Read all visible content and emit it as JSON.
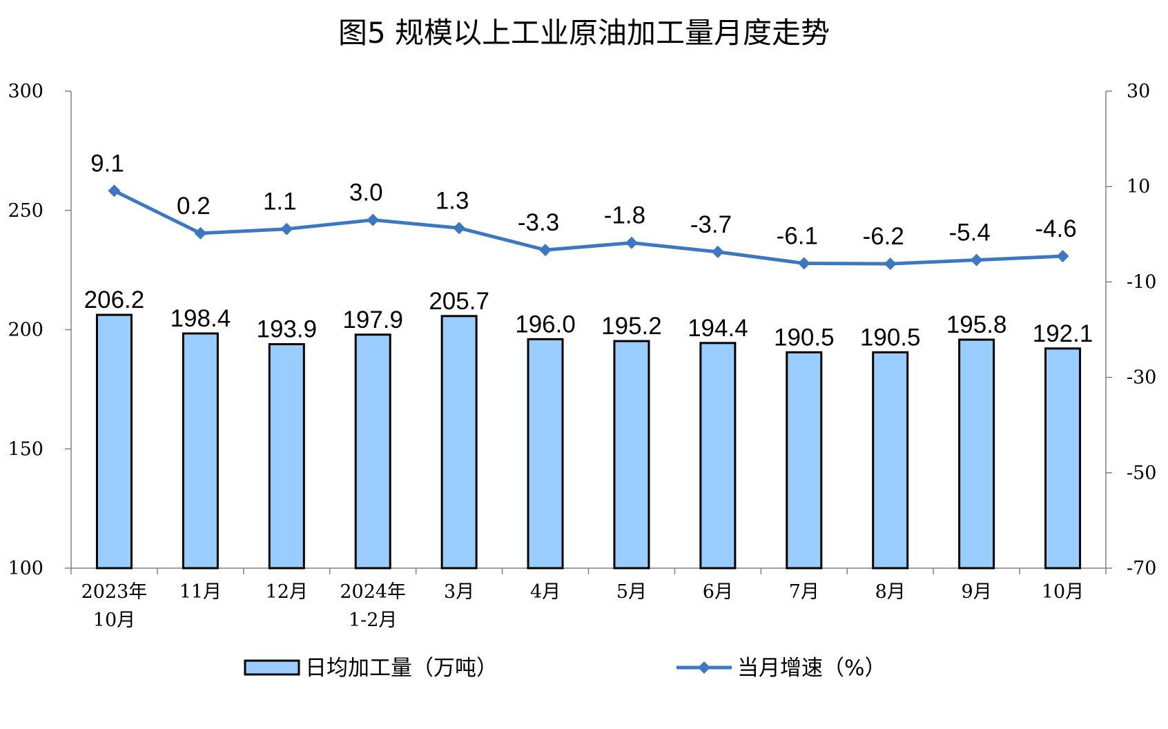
{
  "chart_data": {
    "title": "图5  规模以上工业原油加工量月度走势",
    "type": "bar",
    "categories": [
      [
        "2023年",
        "10月"
      ],
      [
        "11月"
      ],
      [
        "12月"
      ],
      [
        "2024年",
        "1-2月"
      ],
      [
        "3月"
      ],
      [
        "4月"
      ],
      [
        "5月"
      ],
      [
        "6月"
      ],
      [
        "7月"
      ],
      [
        "8月"
      ],
      [
        "9月"
      ],
      [
        "10月"
      ]
    ],
    "series": [
      {
        "name": "日均加工量（万吨）",
        "type": "bar",
        "axis": "left",
        "color": "#99CCFF",
        "values": [
          206.2,
          198.4,
          193.9,
          197.9,
          205.7,
          196.0,
          195.2,
          194.4,
          190.5,
          190.5,
          195.8,
          192.1
        ],
        "labels": [
          "206.2",
          "198.4",
          "193.9",
          "197.9",
          "205.7",
          "196.0",
          "195.2",
          "194.4",
          "190.5",
          "190.5",
          "195.8",
          "192.1"
        ]
      },
      {
        "name": "当月增速（%）",
        "type": "line",
        "axis": "right",
        "color": "#3C78C2",
        "values": [
          9.1,
          0.2,
          1.1,
          3.0,
          1.3,
          -3.3,
          -1.8,
          -3.7,
          -6.1,
          -6.2,
          -5.4,
          -4.6
        ],
        "labels": [
          "9.1",
          "0.2",
          "1.1",
          "3.0",
          "1.3",
          "-3.3",
          "-1.8",
          "-3.7",
          "-6.1",
          "-6.2",
          "-5.4",
          "-4.6"
        ]
      }
    ],
    "y_left": {
      "ylim": [
        100,
        300
      ],
      "ticks": [
        "100",
        "150",
        "200",
        "250",
        "300"
      ]
    },
    "y_right": {
      "ylim": [
        -70,
        30
      ],
      "ticks": [
        "-70",
        "-50",
        "-30",
        "-10",
        "10",
        "30"
      ]
    },
    "grid": false,
    "legend_position": "bottom"
  }
}
